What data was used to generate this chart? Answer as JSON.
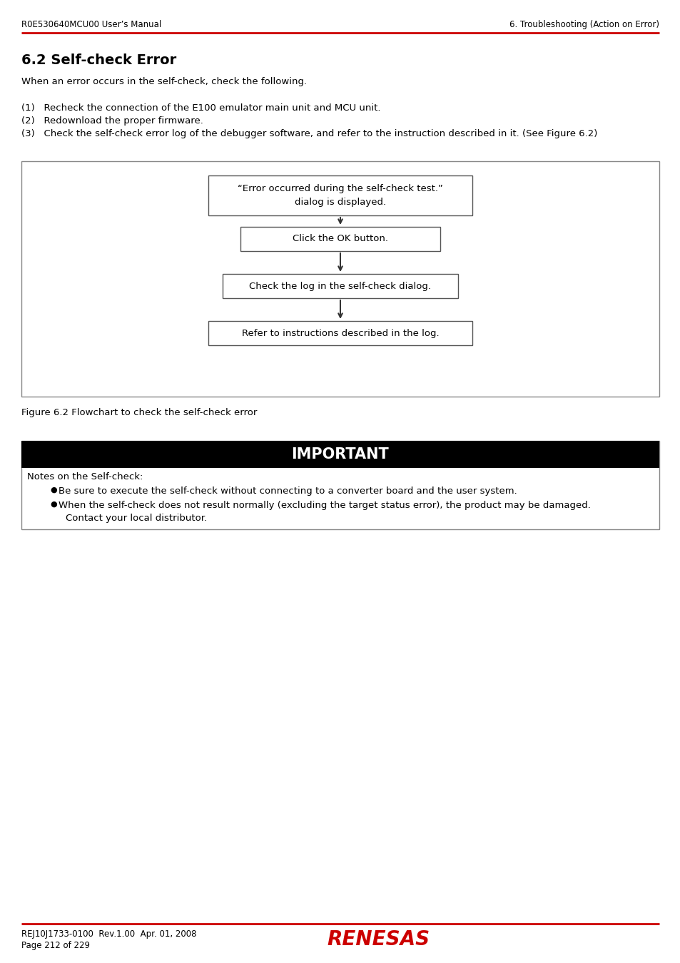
{
  "page_title_left": "R0E530640MCU00 User’s Manual",
  "page_title_right": "6. Troubleshooting (Action on Error)",
  "section_title": "6.2 Self-check Error",
  "intro_text": "When an error occurs in the self-check, check the following.",
  "list_items": [
    "(1)   Recheck the connection of the E100 emulator main unit and MCU unit.",
    "(2)   Redownload the proper firmware.",
    "(3)   Check the self-check error log of the debugger software, and refer to the instruction described in it. (See Figure 6.2)"
  ],
  "flowchart_box1_line1": "“Error occurred during the self-check test.”",
  "flowchart_box1_line2": "dialog is displayed.",
  "flowchart_box2": "Click the OK button.",
  "flowchart_box3": "Check the log in the self-check dialog.",
  "flowchart_box4": "Refer to instructions described in the log.",
  "figure_caption": "Figure 6.2 Flowchart to check the self-check error",
  "important_title": "IMPORTANT",
  "important_label": "Notes on the Self-check:",
  "important_bullet1": "Be sure to execute the self-check without connecting to a converter board and the user system.",
  "important_bullet2a": "When the self-check does not result normally (excluding the target status error), the product may be damaged.",
  "important_bullet2b": "Contact your local distributor.",
  "footer_left_line1": "REJ10J1733-0100  Rev.1.00  Apr. 01, 2008",
  "footer_left_line2": "Page 212 of 229",
  "header_line_color": "#cc0000",
  "footer_line_color": "#cc0000",
  "renesas_color": "#cc0000",
  "bg_color": "#ffffff",
  "text_color": "#000000",
  "box_edge_color": "#555555",
  "outer_box_edge_color": "#888888"
}
